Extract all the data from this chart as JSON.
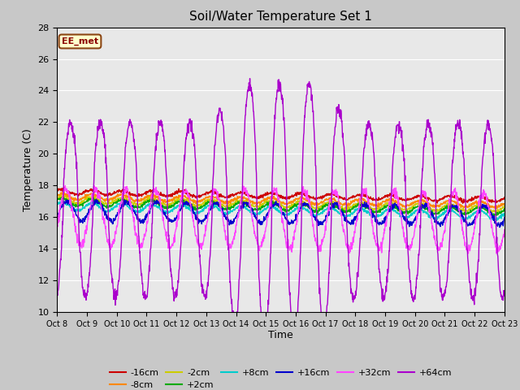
{
  "title": "Soil/Water Temperature Set 1",
  "xlabel": "Time",
  "ylabel": "Temperature (C)",
  "ylim": [
    10,
    28
  ],
  "yticks": [
    10,
    12,
    14,
    16,
    18,
    20,
    22,
    24,
    26,
    28
  ],
  "fig_bg_color": "#c8c8c8",
  "plot_bg_color": "#e8e8e8",
  "annotation_text": "EE_met",
  "annotation_bg": "#ffffcc",
  "annotation_border": "#8B4513",
  "series": {
    "-16cm": {
      "color": "#cc0000",
      "base": 17.6,
      "amp": 0.15,
      "trend": -0.065
    },
    "-8cm": {
      "color": "#ff8800",
      "base": 17.3,
      "amp": 0.18,
      "trend": -0.07
    },
    "-2cm": {
      "color": "#cccc00",
      "base": 17.1,
      "amp": 0.2,
      "trend": -0.075
    },
    "+2cm": {
      "color": "#00aa00",
      "base": 16.95,
      "amp": 0.22,
      "trend": -0.078
    },
    "+8cm": {
      "color": "#00cccc",
      "base": 16.7,
      "amp": 0.25,
      "trend": -0.08
    },
    "+16cm": {
      "color": "#0000cc",
      "base": 16.4,
      "amp": 0.6,
      "trend": -0.05
    },
    "+32cm": {
      "color": "#ff44ff",
      "base": 16.0,
      "amp": 1.8,
      "trend": -0.04
    },
    "+64cm": {
      "color": "#aa00cc",
      "base": 16.5,
      "amp_up": 8.0,
      "amp_down": 6.0,
      "trend": -0.01
    }
  },
  "n_days": 15,
  "points_per_day": 96,
  "xtick_labels": [
    "Oct 8",
    "Oct 9",
    "Oct 10",
    "Oct 11",
    "Oct 12",
    "Oct 13",
    "Oct 14",
    "Oct 15",
    "Oct 16",
    "Oct 17",
    "Oct 18",
    "Oct 19",
    "Oct 20",
    "Oct 21",
    "Oct 22",
    "Oct 23"
  ],
  "legend_order": [
    "-16cm",
    "-8cm",
    "-2cm",
    "+2cm",
    "+8cm",
    "+16cm",
    "+32cm",
    "+64cm"
  ]
}
